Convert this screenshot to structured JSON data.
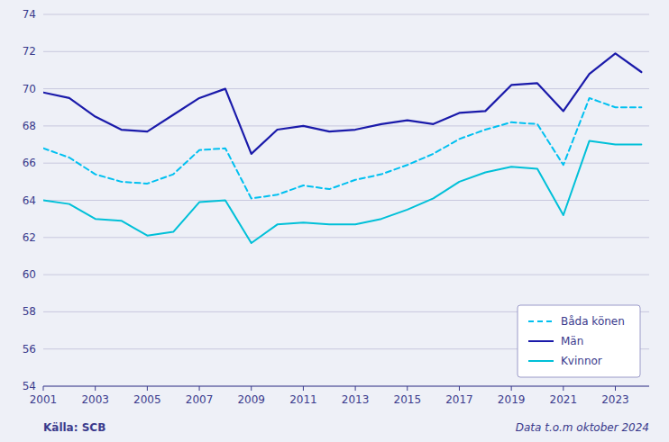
{
  "chart_data": {
    "type": "line",
    "x": [
      2001,
      2002,
      2003,
      2004,
      2005,
      2006,
      2007,
      2008,
      2009,
      2010,
      2011,
      2012,
      2013,
      2014,
      2015,
      2016,
      2017,
      2018,
      2019,
      2020,
      2021,
      2022,
      2023,
      2024
    ],
    "series": [
      {
        "name": "Båda könen",
        "color": "#00c0f0",
        "line_style": "dashed",
        "values": [
          66.8,
          66.3,
          65.4,
          65.0,
          64.9,
          65.4,
          66.7,
          66.8,
          64.1,
          64.3,
          64.8,
          64.6,
          65.1,
          65.4,
          65.9,
          66.5,
          67.3,
          67.8,
          68.2,
          68.1,
          65.9,
          69.5,
          69.0,
          69.0
        ]
      },
      {
        "name": "Män",
        "color": "#1a1aaa",
        "line_style": "solid",
        "values": [
          69.8,
          69.5,
          68.5,
          67.8,
          67.7,
          68.6,
          69.5,
          70.0,
          66.5,
          67.8,
          68.0,
          67.7,
          67.8,
          68.1,
          68.3,
          68.1,
          68.7,
          68.8,
          70.2,
          70.3,
          68.8,
          70.8,
          71.9,
          70.9
        ]
      },
      {
        "name": "Kvinnor",
        "color": "#00c0d8",
        "line_style": "solid",
        "values": [
          64.0,
          63.8,
          63.0,
          62.9,
          62.1,
          62.3,
          63.9,
          64.0,
          61.7,
          62.7,
          62.8,
          62.7,
          62.7,
          63.0,
          63.5,
          64.1,
          65.0,
          65.5,
          65.8,
          65.7,
          63.2,
          67.2,
          67.0,
          67.0
        ]
      }
    ],
    "xlim": [
      2001,
      2024.3
    ],
    "xticks": [
      2001,
      2003,
      2005,
      2007,
      2009,
      2011,
      2013,
      2015,
      2017,
      2019,
      2021,
      2023
    ],
    "ylim": [
      54,
      74
    ],
    "yticks": [
      54,
      56,
      58,
      60,
      62,
      64,
      66,
      68,
      70,
      72,
      74
    ],
    "grid": true,
    "legend": "lower right",
    "annotations": [
      "Källa: SCB",
      "Data t.o.m oktober 2024"
    ]
  }
}
